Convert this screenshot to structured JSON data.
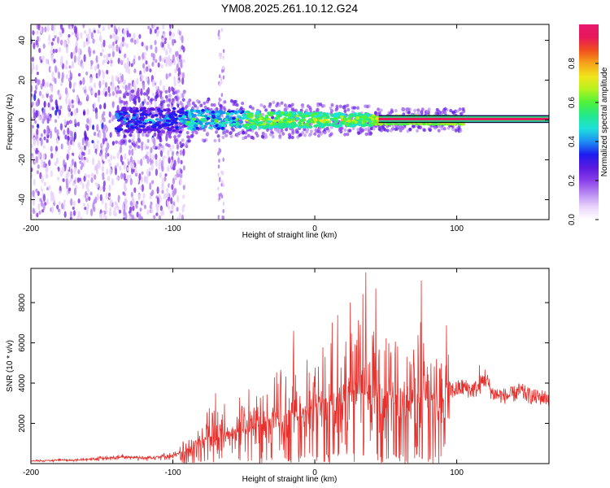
{
  "title": "YM08.2025.261.10.12.G24",
  "chart_data": [
    {
      "type": "heatmap",
      "title": "YM08.2025.261.10.12.G24",
      "xlabel": "Height of straight line (km)",
      "ylabel": "Frequency (Hz)",
      "xlim": [
        -200,
        165
      ],
      "ylim": [
        -50,
        48
      ],
      "x_ticks": [
        -200,
        -100,
        0,
        100
      ],
      "y_ticks": [
        -40,
        -20,
        0,
        20,
        40
      ],
      "colorbar": {
        "label": "Normalized spectral amplitude",
        "range": [
          0,
          1
        ],
        "ticks": [
          0.0,
          0.2,
          0.4,
          0.6,
          0.8
        ],
        "colormap": [
          "#ffffff",
          "#e9d3fb",
          "#b98af2",
          "#8a3fe9",
          "#5a19e0",
          "#1e1cf0",
          "#1c8ff2",
          "#1ee0dc",
          "#22e88c",
          "#4df23a",
          "#b4f21e",
          "#f0e41a",
          "#f5a41a",
          "#f0501e",
          "#e8185a",
          "#e8186e"
        ]
      },
      "ridge_line": {
        "frequency_hz": 0.5,
        "from_km": 45,
        "to_km": 165
      }
    },
    {
      "type": "line",
      "xlabel": "Height of straight line (km)",
      "ylabel": "SNR (10 * v/v)",
      "xlim": [
        -200,
        165
      ],
      "ylim": [
        0,
        9700
      ],
      "x_ticks": [
        -200,
        -100,
        0,
        100
      ],
      "y_ticks": [
        2000,
        4000,
        6000,
        8000
      ],
      "series": [
        {
          "name": "SNR",
          "color": "#e8302c",
          "x": [
            -200,
            -190,
            -180,
            -170,
            -160,
            -150,
            -140,
            -130,
            -120,
            -110,
            -100,
            -95,
            -90,
            -85,
            -80,
            -75,
            -70,
            -65,
            -60,
            -55,
            -50,
            -45,
            -40,
            -35,
            -30,
            -25,
            -20,
            -15,
            -10,
            -5,
            0,
            5,
            10,
            15,
            20,
            25,
            30,
            35,
            40,
            45,
            50,
            55,
            60,
            65,
            70,
            75,
            80,
            85,
            90,
            95,
            100,
            105,
            110,
            115,
            120,
            125,
            130,
            135,
            140,
            145,
            150,
            155,
            160,
            165
          ],
          "values": [
            120,
            150,
            180,
            160,
            220,
            250,
            300,
            330,
            280,
            350,
            380,
            500,
            700,
            900,
            1100,
            1300,
            1200,
            1400,
            1500,
            1600,
            1700,
            1800,
            1900,
            2000,
            2200,
            2300,
            2500,
            2500,
            2600,
            2700,
            2900,
            3000,
            3200,
            3300,
            3400,
            3600,
            3700,
            3800,
            3700,
            3600,
            3500,
            3400,
            3400,
            3500,
            3400,
            3300,
            3300,
            3400,
            3500,
            3600,
            3700,
            3800,
            3650,
            3750,
            4300,
            3500,
            3400,
            3350,
            3450,
            3600,
            3400,
            3300,
            3300,
            3250
          ],
          "peaks": [
            {
              "x": -70,
              "value": 3500
            },
            {
              "x": -15,
              "value": 6600
            },
            {
              "x": 25,
              "value": 8000
            },
            {
              "x": 32,
              "value": 6900
            },
            {
              "x": 36,
              "value": 9500
            },
            {
              "x": 43,
              "value": 8700
            },
            {
              "x": 75,
              "value": 9100
            },
            {
              "x": 116,
              "value": 4900
            }
          ]
        }
      ]
    }
  ]
}
